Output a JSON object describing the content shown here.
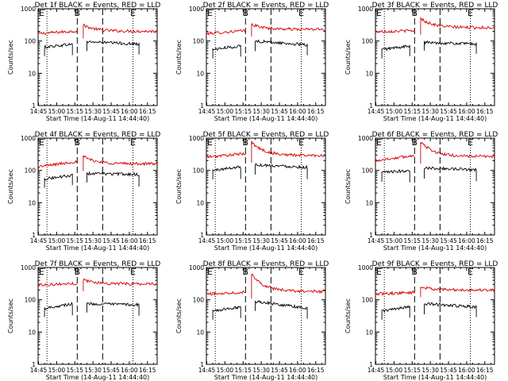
{
  "colors": {
    "events": "#000000",
    "lld": "#d40000",
    "axis": "#000000",
    "background": "#ffffff"
  },
  "chart_data": [
    {
      "type": "line",
      "title": "Det 1f BLACK = Events, RED = LLD",
      "xlabel": "Start Time (14-Aug-11 14:44:40)",
      "ylabel": "Counts/sec",
      "xlim": [
        "14:44:40",
        "16:23"
      ],
      "ylim": [
        1,
        1000
      ],
      "yscale": "log",
      "x_ticks": [
        "14:45",
        "15:00",
        "15:15",
        "15:30",
        "15:45",
        "16:00",
        "16:15"
      ],
      "y_ticks": [
        "1",
        "10",
        "100",
        "1000"
      ],
      "grid": false,
      "vertical_markers": [
        {
          "time": "14:52",
          "style": "dotted",
          "label": ""
        },
        {
          "time": "15:17",
          "style": "dashed",
          "label": "B"
        },
        {
          "time": "15:38",
          "style": "dashed",
          "label": ""
        },
        {
          "time": "16:03",
          "style": "dotted",
          "label": "E"
        }
      ],
      "corner_label": "E",
      "series": [
        {
          "name": "",
          "color": "red",
          "segments": [
            {
              "from": "14:44:40",
              "to": "15:17",
              "start": 170,
              "end": 205
            },
            {
              "from": "15:22",
              "to": "16:23",
              "start": 310,
              "end": 200
            }
          ]
        },
        {
          "name": "",
          "color": "black",
          "segments": [
            {
              "from": "14:50",
              "to": "15:13",
              "start": 65,
              "end": 80
            },
            {
              "from": "15:25",
              "to": "16:08",
              "start": 95,
              "end": 80
            }
          ]
        }
      ]
    },
    {
      "type": "line",
      "title": "Det 2f BLACK = Events, RED = LLD",
      "xlabel": "Start Time (14-Aug-11 14:44:40)",
      "ylabel": "Counts/sec",
      "xlim": [
        "14:44:40",
        "16:23"
      ],
      "ylim": [
        1,
        1000
      ],
      "yscale": "log",
      "x_ticks": [
        "14:45",
        "15:00",
        "15:15",
        "15:30",
        "15:45",
        "16:00",
        "16:15"
      ],
      "y_ticks": [
        "1",
        "10",
        "100",
        "1000"
      ],
      "grid": false,
      "vertical_markers": [
        {
          "time": "14:52",
          "style": "dotted",
          "label": ""
        },
        {
          "time": "15:17",
          "style": "dashed",
          "label": "B"
        },
        {
          "time": "15:38",
          "style": "dashed",
          "label": ""
        },
        {
          "time": "16:03",
          "style": "dotted",
          "label": "E"
        }
      ],
      "corner_label": "E",
      "series": [
        {
          "name": "",
          "color": "red",
          "segments": [
            {
              "from": "14:44:40",
              "to": "15:17",
              "start": 170,
              "end": 210
            },
            {
              "from": "15:22",
              "to": "16:23",
              "start": 330,
              "end": 230
            }
          ]
        },
        {
          "name": "",
          "color": "black",
          "segments": [
            {
              "from": "14:50",
              "to": "15:13",
              "start": 55,
              "end": 70
            },
            {
              "from": "15:25",
              "to": "16:08",
              "start": 100,
              "end": 75
            }
          ]
        }
      ]
    },
    {
      "type": "line",
      "title": "Det 3f BLACK = Events, RED = LLD",
      "xlabel": "Start Time (14-Aug-11 14:44:40)",
      "ylabel": "Counts/sec",
      "xlim": [
        "14:44:40",
        "16:23"
      ],
      "ylim": [
        1,
        1000
      ],
      "yscale": "log",
      "x_ticks": [
        "14:45",
        "15:00",
        "15:15",
        "15:30",
        "15:45",
        "16:00",
        "16:15"
      ],
      "y_ticks": [
        "1",
        "10",
        "100",
        "1000"
      ],
      "grid": false,
      "vertical_markers": [
        {
          "time": "14:52",
          "style": "dotted",
          "label": ""
        },
        {
          "time": "15:17",
          "style": "dashed",
          "label": "B"
        },
        {
          "time": "15:38",
          "style": "dashed",
          "label": ""
        },
        {
          "time": "16:03",
          "style": "dotted",
          "label": "E"
        }
      ],
      "corner_label": "E",
      "series": [
        {
          "name": "",
          "color": "red",
          "segments": [
            {
              "from": "14:44:40",
              "to": "15:17",
              "start": 195,
              "end": 210
            },
            {
              "from": "15:22",
              "to": "16:23",
              "start": 500,
              "end": 260
            }
          ]
        },
        {
          "name": "",
          "color": "black",
          "segments": [
            {
              "from": "14:50",
              "to": "15:13",
              "start": 55,
              "end": 70
            },
            {
              "from": "15:25",
              "to": "16:08",
              "start": 90,
              "end": 80
            }
          ]
        }
      ]
    },
    {
      "type": "line",
      "title": "Det 4f BLACK = Events, RED = LLD",
      "xlabel": "Start Time (14-Aug-11 14:44:40)",
      "ylabel": "Counts/sec",
      "xlim": [
        "14:44:40",
        "16:23"
      ],
      "ylim": [
        1,
        1000
      ],
      "yscale": "log",
      "x_ticks": [
        "14:45",
        "15:00",
        "15:15",
        "15:30",
        "15:45",
        "16:00",
        "16:15"
      ],
      "y_ticks": [
        "1",
        "10",
        "100",
        "1000"
      ],
      "grid": false,
      "vertical_markers": [
        {
          "time": "14:52",
          "style": "dotted",
          "label": ""
        },
        {
          "time": "15:17",
          "style": "dashed",
          "label": "B"
        },
        {
          "time": "15:38",
          "style": "dashed",
          "label": ""
        },
        {
          "time": "16:03",
          "style": "dotted",
          "label": "E"
        }
      ],
      "corner_label": "E",
      "series": [
        {
          "name": "",
          "color": "red",
          "segments": [
            {
              "from": "14:44:40",
              "to": "15:17",
              "start": 130,
              "end": 190
            },
            {
              "from": "15:22",
              "to": "16:23",
              "start": 270,
              "end": 160
            }
          ]
        },
        {
          "name": "",
          "color": "black",
          "segments": [
            {
              "from": "14:50",
              "to": "15:13",
              "start": 55,
              "end": 70
            },
            {
              "from": "15:25",
              "to": "16:08",
              "start": 80,
              "end": 75
            }
          ]
        }
      ]
    },
    {
      "type": "line",
      "title": "Det 5f BLACK = Events, RED = LLD",
      "xlabel": "Start Time (14-Aug-11 14:44:40)",
      "ylabel": "Counts/sec",
      "xlim": [
        "14:44:40",
        "16:23"
      ],
      "ylim": [
        1,
        1000
      ],
      "yscale": "log",
      "x_ticks": [
        "14:45",
        "15:00",
        "15:15",
        "15:30",
        "15:45",
        "16:00",
        "16:15"
      ],
      "y_ticks": [
        "1",
        "10",
        "100",
        "1000"
      ],
      "grid": false,
      "vertical_markers": [
        {
          "time": "14:52",
          "style": "dotted",
          "label": ""
        },
        {
          "time": "15:17",
          "style": "dashed",
          "label": "B"
        },
        {
          "time": "15:38",
          "style": "dashed",
          "label": ""
        },
        {
          "time": "16:03",
          "style": "dotted",
          "label": "E"
        }
      ],
      "corner_label": "E",
      "series": [
        {
          "name": "",
          "color": "red",
          "segments": [
            {
              "from": "14:44:40",
              "to": "15:17",
              "start": 260,
              "end": 330
            },
            {
              "from": "15:22",
              "to": "16:23",
              "start": 750,
              "end": 290
            }
          ]
        },
        {
          "name": "",
          "color": "black",
          "segments": [
            {
              "from": "14:50",
              "to": "15:13",
              "start": 100,
              "end": 130
            },
            {
              "from": "15:25",
              "to": "16:08",
              "start": 150,
              "end": 125
            }
          ]
        }
      ]
    },
    {
      "type": "line",
      "title": "Det 6f BLACK = Events, RED = LLD",
      "xlabel": "Start Time (14-Aug-11 14:44:40)",
      "ylabel": "Counts/sec",
      "xlim": [
        "14:44:40",
        "16:23"
      ],
      "ylim": [
        1,
        1000
      ],
      "yscale": "log",
      "x_ticks": [
        "14:45",
        "15:00",
        "15:15",
        "15:30",
        "15:45",
        "16:00",
        "16:15"
      ],
      "y_ticks": [
        "1",
        "10",
        "100",
        "1000"
      ],
      "grid": false,
      "vertical_markers": [
        {
          "time": "14:52",
          "style": "dotted",
          "label": ""
        },
        {
          "time": "15:17",
          "style": "dashed",
          "label": "B"
        },
        {
          "time": "15:38",
          "style": "dashed",
          "label": ""
        },
        {
          "time": "16:03",
          "style": "dotted",
          "label": "E"
        }
      ],
      "corner_label": "E",
      "series": [
        {
          "name": "",
          "color": "red",
          "segments": [
            {
              "from": "14:44:40",
              "to": "15:17",
              "start": 200,
              "end": 290
            },
            {
              "from": "15:22",
              "to": "16:23",
              "start": 800,
              "end": 270
            }
          ]
        },
        {
          "name": "",
          "color": "black",
          "segments": [
            {
              "from": "14:50",
              "to": "15:13",
              "start": 85,
              "end": 100
            },
            {
              "from": "15:25",
              "to": "16:08",
              "start": 120,
              "end": 105
            }
          ]
        }
      ]
    },
    {
      "type": "line",
      "title": "Det 7f BLACK = Events, RED = LLD",
      "xlabel": "Start Time (14-Aug-11 14:44:40)",
      "ylabel": "Counts/sec",
      "xlim": [
        "14:44:40",
        "16:23"
      ],
      "ylim": [
        1,
        1000
      ],
      "yscale": "log",
      "x_ticks": [
        "14:45",
        "15:00",
        "15:15",
        "15:30",
        "15:45",
        "16:00",
        "16:15"
      ],
      "y_ticks": [
        "1",
        "10",
        "100",
        "1000"
      ],
      "grid": false,
      "vertical_markers": [
        {
          "time": "14:52",
          "style": "dotted",
          "label": ""
        },
        {
          "time": "15:17",
          "style": "dashed",
          "label": "B"
        },
        {
          "time": "15:38",
          "style": "dashed",
          "label": ""
        },
        {
          "time": "16:03",
          "style": "dotted",
          "label": "E"
        }
      ],
      "corner_label": "E",
      "series": [
        {
          "name": "",
          "color": "red",
          "segments": [
            {
              "from": "14:44:40",
              "to": "15:17",
              "start": 290,
              "end": 320
            },
            {
              "from": "15:22",
              "to": "16:23",
              "start": 420,
              "end": 310
            }
          ]
        },
        {
          "name": "",
          "color": "black",
          "segments": [
            {
              "from": "14:50",
              "to": "15:13",
              "start": 55,
              "end": 75
            },
            {
              "from": "15:25",
              "to": "16:08",
              "start": 75,
              "end": 70
            }
          ]
        }
      ]
    },
    {
      "type": "line",
      "title": "Det 8f BLACK = Events, RED = LLD",
      "xlabel": "Start Time (14-Aug-11 14:44:40)",
      "ylabel": "Counts/sec",
      "xlim": [
        "14:44:40",
        "16:23"
      ],
      "ylim": [
        1,
        1000
      ],
      "yscale": "log",
      "x_ticks": [
        "14:45",
        "15:00",
        "15:15",
        "15:30",
        "15:45",
        "16:00",
        "16:15"
      ],
      "y_ticks": [
        "1",
        "10",
        "100",
        "1000"
      ],
      "grid": false,
      "vertical_markers": [
        {
          "time": "14:52",
          "style": "dotted",
          "label": ""
        },
        {
          "time": "15:17",
          "style": "dashed",
          "label": "B"
        },
        {
          "time": "15:38",
          "style": "dashed",
          "label": ""
        },
        {
          "time": "16:03",
          "style": "dotted",
          "label": "E"
        }
      ],
      "corner_label": "E",
      "series": [
        {
          "name": "",
          "color": "red",
          "segments": [
            {
              "from": "14:44:40",
              "to": "15:17",
              "start": 150,
              "end": 175
            },
            {
              "from": "15:22",
              "to": "16:23",
              "start": 650,
              "end": 180
            }
          ]
        },
        {
          "name": "",
          "color": "black",
          "segments": [
            {
              "from": "14:50",
              "to": "15:13",
              "start": 45,
              "end": 60
            },
            {
              "from": "15:25",
              "to": "16:08",
              "start": 90,
              "end": 55
            }
          ]
        }
      ]
    },
    {
      "type": "line",
      "title": "Det 9f BLACK = Events, RED = LLD",
      "xlabel": "Start Time (14-Aug-11 14:44:40)",
      "ylabel": "Counts/sec",
      "xlim": [
        "14:44:40",
        "16:23"
      ],
      "ylim": [
        1,
        1000
      ],
      "yscale": "log",
      "x_ticks": [
        "14:45",
        "15:00",
        "15:15",
        "15:30",
        "15:45",
        "16:00",
        "16:15"
      ],
      "y_ticks": [
        "1",
        "10",
        "100",
        "1000"
      ],
      "grid": false,
      "vertical_markers": [
        {
          "time": "14:52",
          "style": "dotted",
          "label": ""
        },
        {
          "time": "15:17",
          "style": "dashed",
          "label": "B"
        },
        {
          "time": "15:38",
          "style": "dashed",
          "label": ""
        },
        {
          "time": "16:03",
          "style": "dotted",
          "label": "E"
        }
      ],
      "corner_label": "E",
      "series": [
        {
          "name": "",
          "color": "red",
          "segments": [
            {
              "from": "14:44:40",
              "to": "15:17",
              "start": 150,
              "end": 170
            },
            {
              "from": "15:22",
              "to": "16:23",
              "start": 250,
              "end": 200
            }
          ]
        },
        {
          "name": "",
          "color": "black",
          "segments": [
            {
              "from": "14:50",
              "to": "15:13",
              "start": 45,
              "end": 60
            },
            {
              "from": "15:25",
              "to": "16:08",
              "start": 75,
              "end": 60
            }
          ]
        }
      ]
    }
  ]
}
